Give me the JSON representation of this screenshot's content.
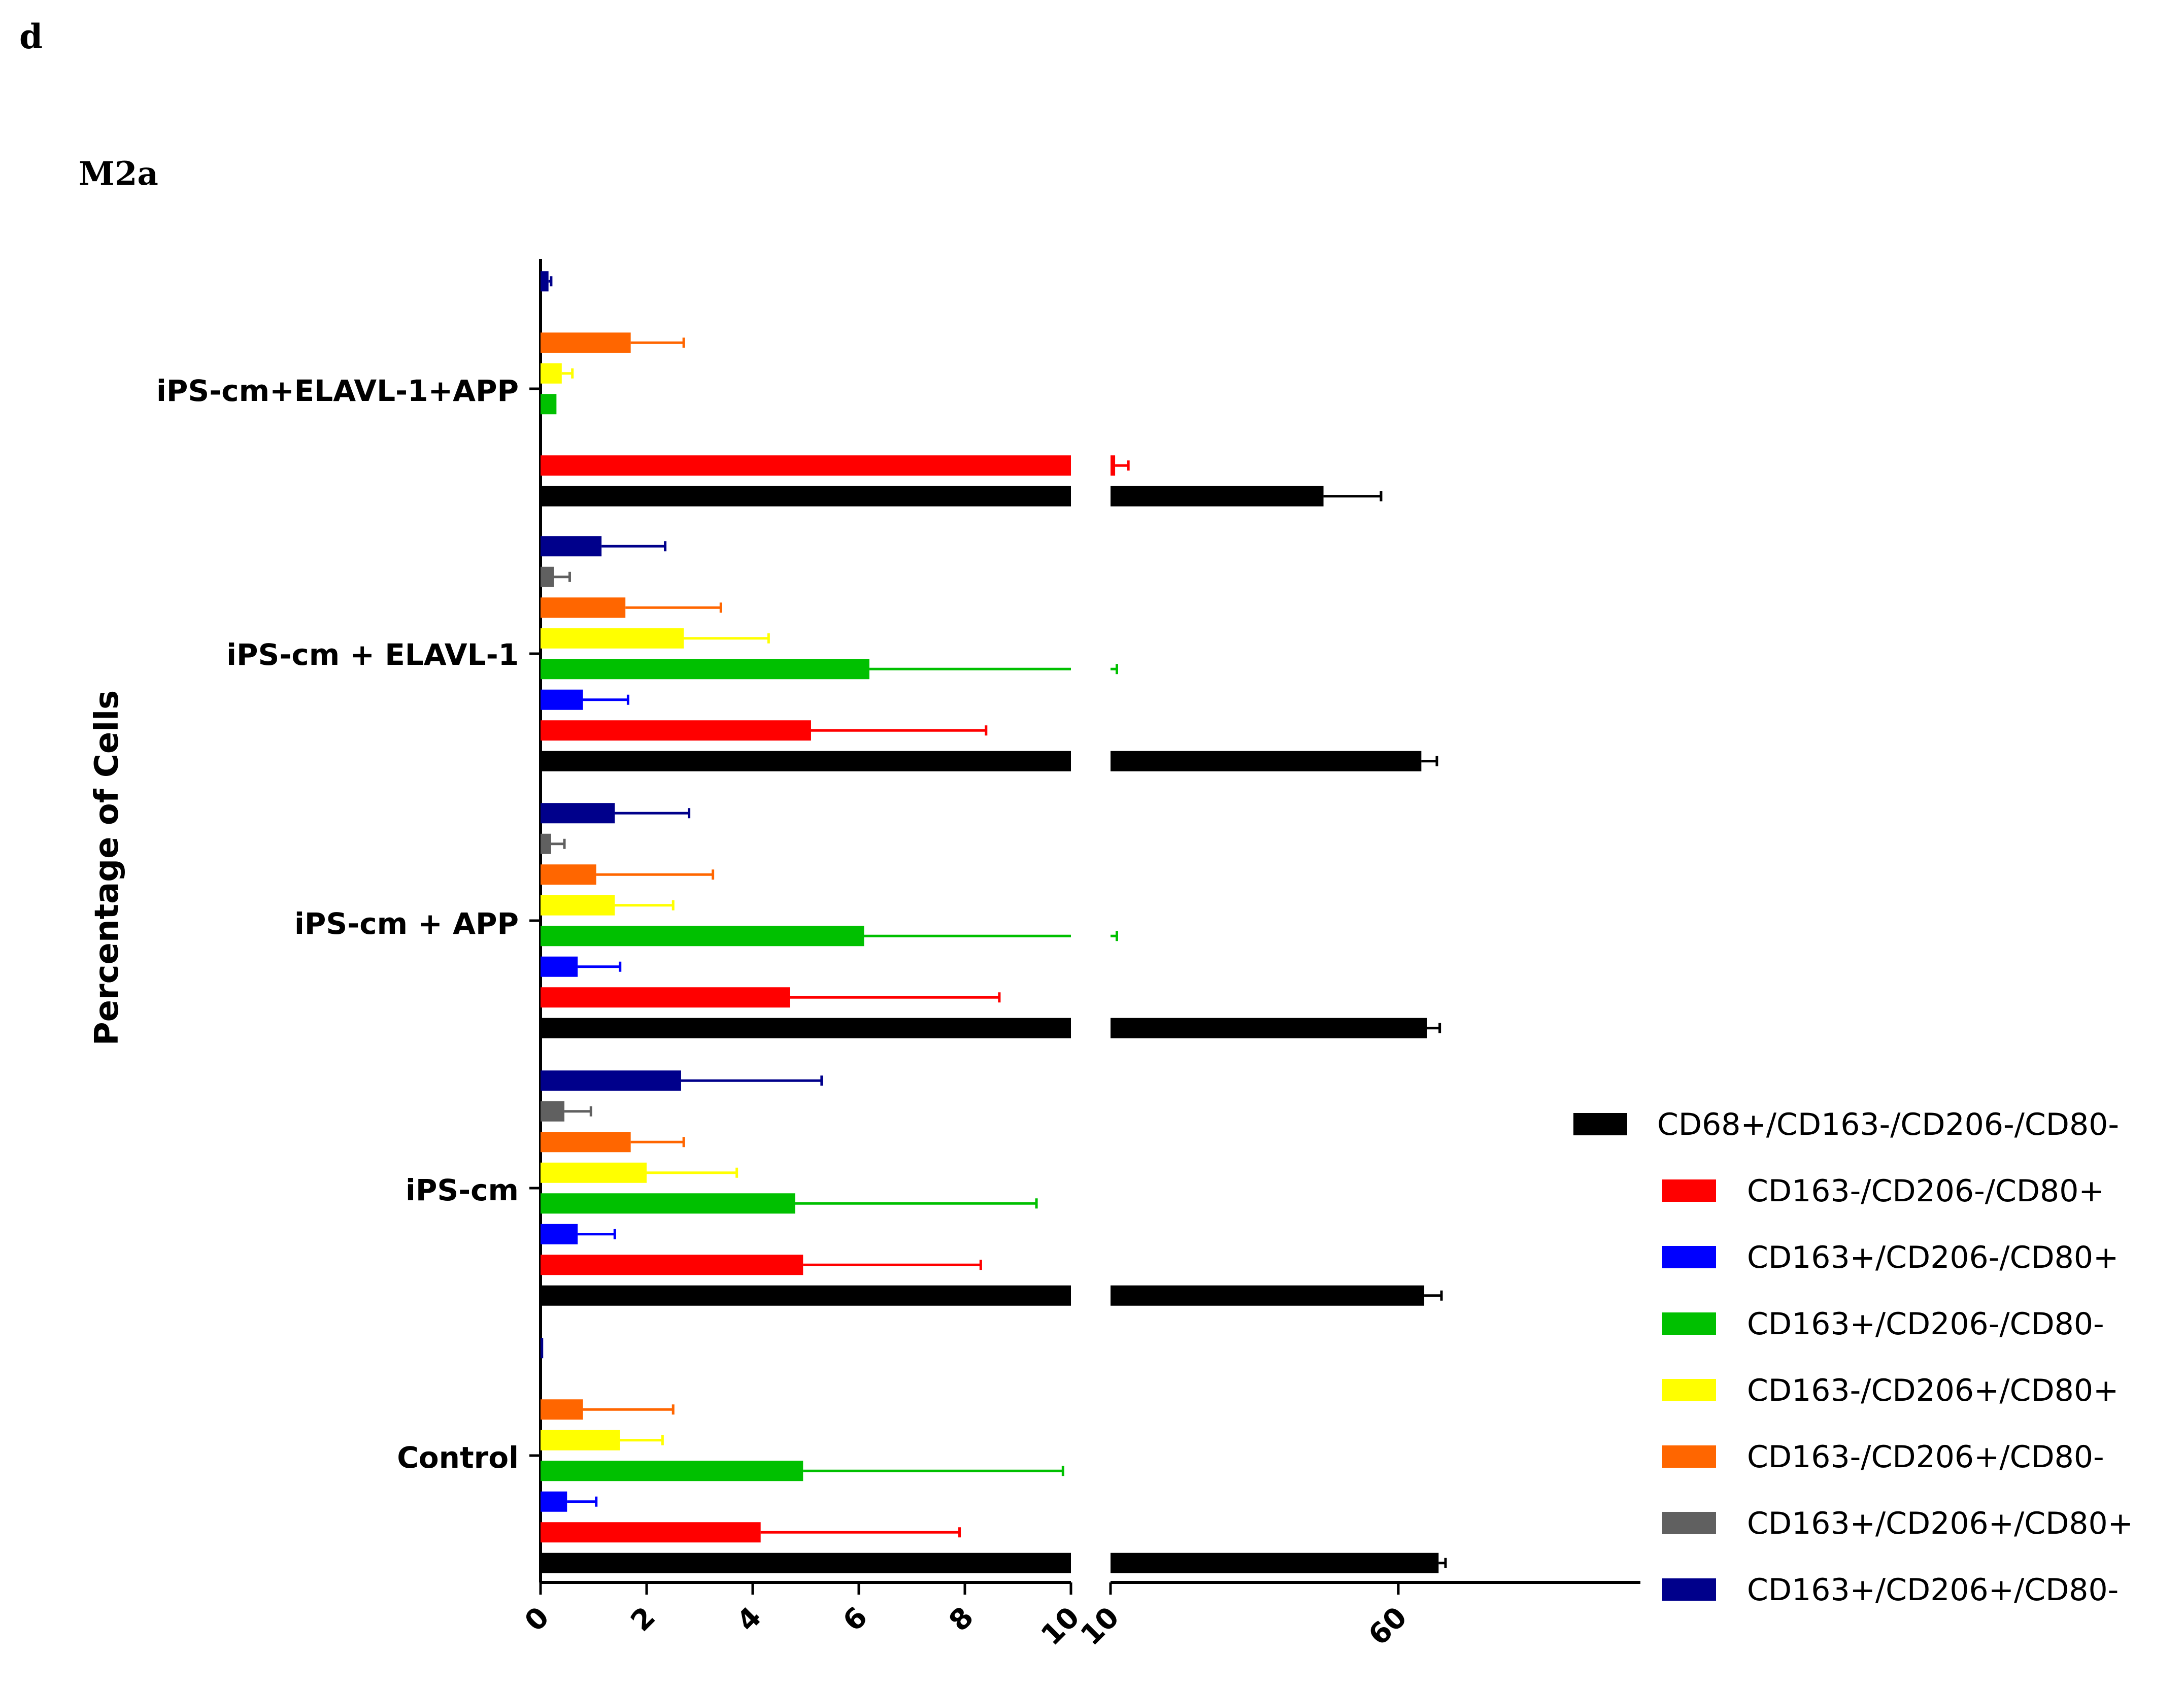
{
  "panel_letter": "d",
  "chart_data": {
    "type": "bar",
    "orientation": "horizontal",
    "title": "M2a",
    "ylabel": "Percentage of Cells",
    "xlabel": "",
    "broken_axis": true,
    "segments": [
      {
        "range": [
          0,
          10
        ],
        "ticks": [
          0,
          2,
          4,
          6,
          8,
          10
        ]
      },
      {
        "range": [
          10,
          70
        ],
        "ticks": [
          10,
          60
        ]
      }
    ],
    "categories": [
      "Control",
      "iPS-cm",
      "iPS-cm + APP",
      "iPS-cm + ELAVL-1",
      "iPS-cm+ELAVL-1+APP"
    ],
    "series": [
      {
        "name": "CD68+/CD163-/CD206-/CD80-",
        "color": "#000000",
        "values": [
          67.0,
          64.5,
          65.0,
          64.0,
          47.0
        ],
        "errors": [
          1.2,
          3.0,
          2.2,
          2.7,
          10.0
        ]
      },
      {
        "name": "CD163-/CD206-/CD80+",
        "color": "#ff0000",
        "values": [
          4.15,
          4.95,
          4.7,
          5.1,
          10.8
        ],
        "errors": [
          3.75,
          3.35,
          3.95,
          3.3,
          2.3
        ]
      },
      {
        "name": "CD163+/CD206-/CD80+",
        "color": "#0000ff",
        "values": [
          0.5,
          0.7,
          0.7,
          0.8,
          null
        ],
        "errors": [
          0.55,
          0.7,
          0.8,
          0.85,
          null
        ]
      },
      {
        "name": "CD163+/CD206-/CD80-",
        "color": "#00c000",
        "values": [
          4.95,
          4.8,
          6.1,
          6.2,
          0.3
        ],
        "errors": [
          4.9,
          4.55,
          5.0,
          4.9,
          null
        ]
      },
      {
        "name": "CD163-/CD206+/CD80+",
        "color": "#ffff00",
        "values": [
          1.5,
          2.0,
          1.4,
          2.7,
          0.4
        ],
        "errors": [
          0.8,
          1.7,
          1.1,
          1.6,
          0.2
        ]
      },
      {
        "name": "CD163-/CD206+/CD80-",
        "color": "#ff6600",
        "values": [
          0.8,
          1.7,
          1.05,
          1.6,
          1.7
        ],
        "errors": [
          1.7,
          1.0,
          2.2,
          1.8,
          1.0
        ]
      },
      {
        "name": "CD163+/CD206+/CD80+",
        "color": "#606060",
        "values": [
          null,
          0.45,
          0.2,
          0.25,
          null
        ],
        "errors": [
          null,
          0.5,
          0.25,
          0.3,
          null
        ]
      },
      {
        "name": "CD163+/CD206+/CD80-",
        "color": "#00008b",
        "values": [
          0.05,
          2.65,
          1.4,
          1.15,
          0.15
        ],
        "errors": [
          null,
          2.65,
          1.4,
          1.2,
          0.05
        ]
      }
    ],
    "legend_position": "right",
    "grid": false
  }
}
